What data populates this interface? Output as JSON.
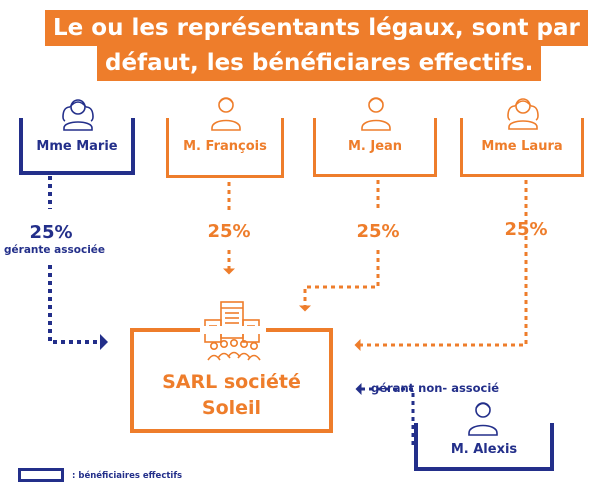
{
  "title": {
    "line1": "Le ou les représentants légaux, sont par",
    "line2": "défaut, les bénéficiares effectifs."
  },
  "colors": {
    "orange": "#ee7d2b",
    "navy": "#232f8a",
    "white": "#ffffff"
  },
  "persons": {
    "marie": {
      "label": "Mme Marie",
      "pct": "25%",
      "note": "gérante associée",
      "icon": "woman-avatar-icon"
    },
    "francois": {
      "label": "M. François",
      "pct": "25%",
      "icon": "man-avatar-icon"
    },
    "jean": {
      "label": "M. Jean",
      "pct": "25%",
      "icon": "man-avatar-icon"
    },
    "laura": {
      "label": "Mme Laura",
      "pct": "25%",
      "icon": "woman-avatar-icon"
    },
    "alexis": {
      "label": "M. Alexis",
      "note": "gérant non- associé",
      "icon": "man-avatar-icon"
    }
  },
  "company": {
    "line1": "SARL société",
    "line2": "Soleil",
    "icon": "company-building-icon"
  },
  "legend": {
    "text": ": bénéficiaires effectifs"
  }
}
